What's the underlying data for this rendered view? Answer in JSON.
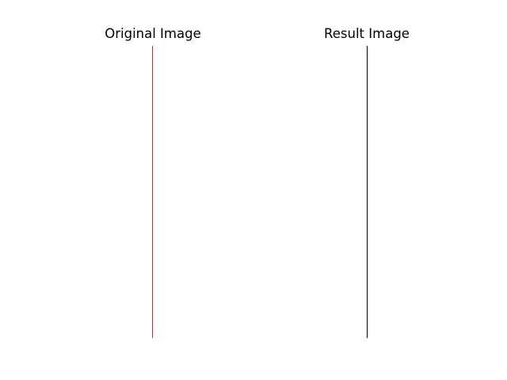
{
  "panels": [
    {
      "title": "Original Image",
      "line_color": "#c0282b"
    },
    {
      "title": "Result Image",
      "line_color": "#000000"
    }
  ]
}
